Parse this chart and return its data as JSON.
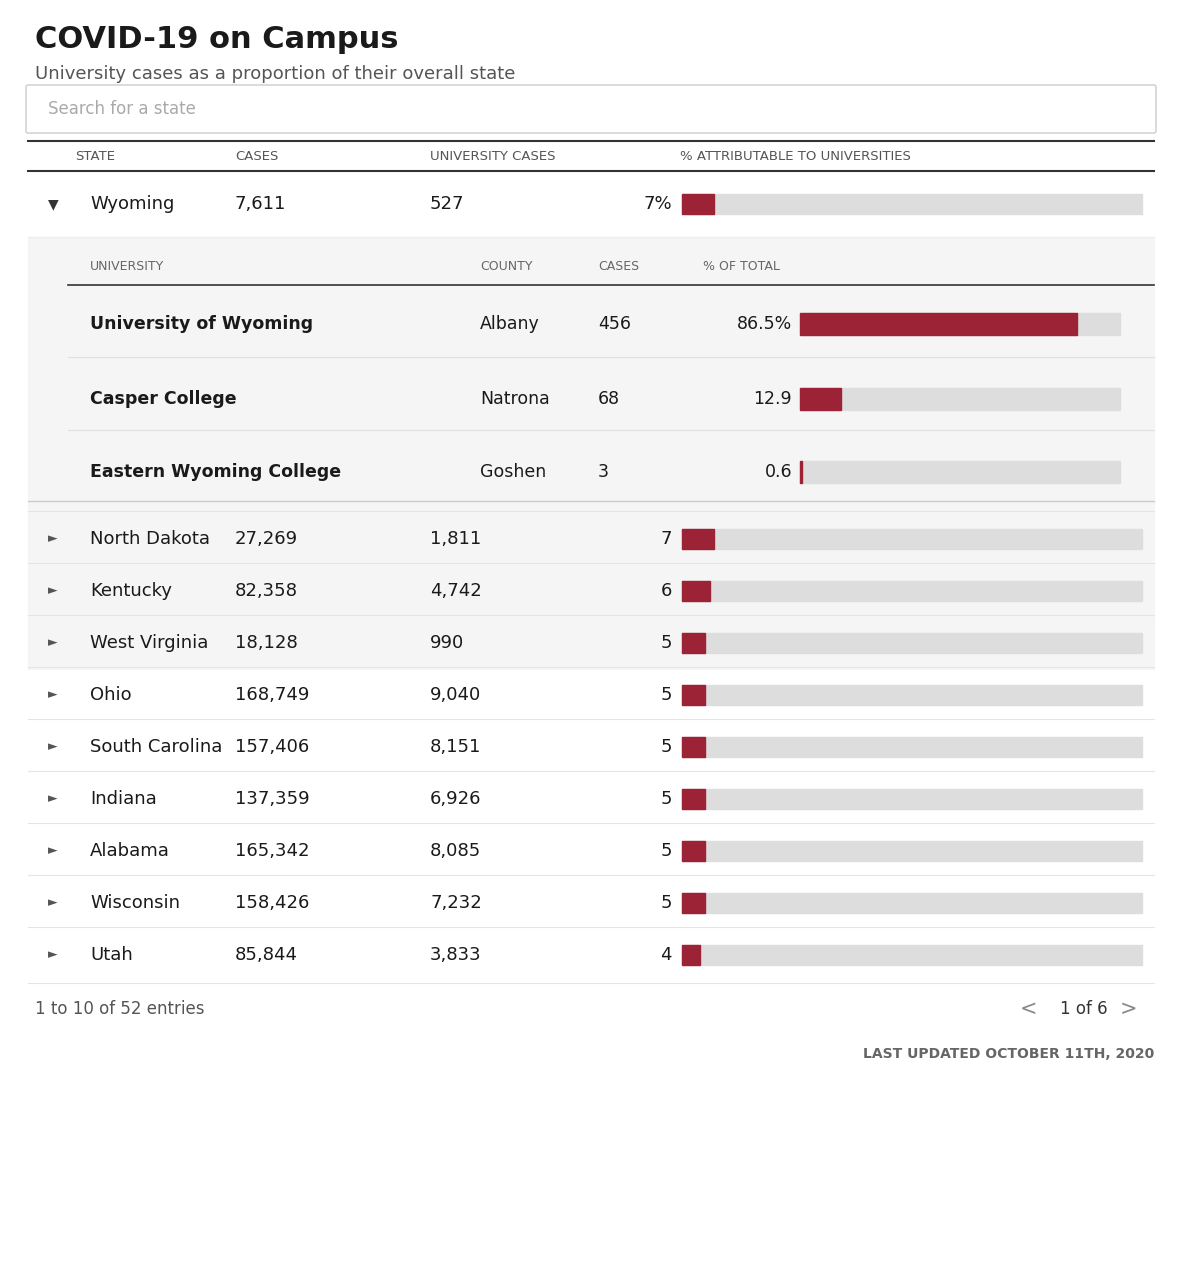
{
  "title": "COVID-19 on Campus",
  "subtitle": "University cases as a proportion of their overall state",
  "search_placeholder": "Search for a state",
  "header_cols": [
    "STATE",
    "CASES",
    "UNIVERSITY CASES",
    "% ATTRIBUTABLE TO UNIVERSITIES"
  ],
  "main_rows": [
    {
      "state": "Wyoming",
      "cases": "7,611",
      "uni_cases": "527",
      "pct": 7,
      "pct_label": "7%",
      "expanded": true,
      "arrow": "down"
    },
    {
      "state": "North Dakota",
      "cases": "27,269",
      "uni_cases": "1,811",
      "pct": 7,
      "pct_label": "7",
      "expanded": false,
      "arrow": "right"
    },
    {
      "state": "Kentucky",
      "cases": "82,358",
      "uni_cases": "4,742",
      "pct": 6,
      "pct_label": "6",
      "expanded": false,
      "arrow": "right"
    },
    {
      "state": "West Virginia",
      "cases": "18,128",
      "uni_cases": "990",
      "pct": 5,
      "pct_label": "5",
      "expanded": false,
      "arrow": "right"
    },
    {
      "state": "Ohio",
      "cases": "168,749",
      "uni_cases": "9,040",
      "pct": 5,
      "pct_label": "5",
      "expanded": false,
      "arrow": "right"
    },
    {
      "state": "South Carolina",
      "cases": "157,406",
      "uni_cases": "8,151",
      "pct": 5,
      "pct_label": "5",
      "expanded": false,
      "arrow": "right"
    },
    {
      "state": "Indiana",
      "cases": "137,359",
      "uni_cases": "6,926",
      "pct": 5,
      "pct_label": "5",
      "expanded": false,
      "arrow": "right"
    },
    {
      "state": "Alabama",
      "cases": "165,342",
      "uni_cases": "8,085",
      "pct": 5,
      "pct_label": "5",
      "expanded": false,
      "arrow": "right"
    },
    {
      "state": "Wisconsin",
      "cases": "158,426",
      "uni_cases": "7,232",
      "pct": 5,
      "pct_label": "5",
      "expanded": false,
      "arrow": "right"
    },
    {
      "state": "Utah",
      "cases": "85,844",
      "uni_cases": "3,833",
      "pct": 4,
      "pct_label": "4",
      "expanded": false,
      "arrow": "right"
    }
  ],
  "sub_rows": [
    {
      "university": "University of Wyoming",
      "county": "Albany",
      "cases": "456",
      "pct": 86.5,
      "pct_label": "86.5%"
    },
    {
      "university": "Casper College",
      "county": "Natrona",
      "cases": "68",
      "pct": 12.9,
      "pct_label": "12.9"
    },
    {
      "university": "Eastern Wyoming College",
      "county": "Goshen",
      "cases": "3",
      "pct": 0.6,
      "pct_label": "0.6"
    }
  ],
  "footer_left": "1 to 10 of 52 entries",
  "footer_right": "1 of 6",
  "footer_date": "LAST UPDATED OCTOBER 11TH, 2020",
  "bar_color": "#9B2335",
  "bar_bg_color": "#DDDDDD",
  "bg_color": "#FFFFFF",
  "text_color": "#1a1a1a",
  "subrow_bg": "#F5F5F5"
}
